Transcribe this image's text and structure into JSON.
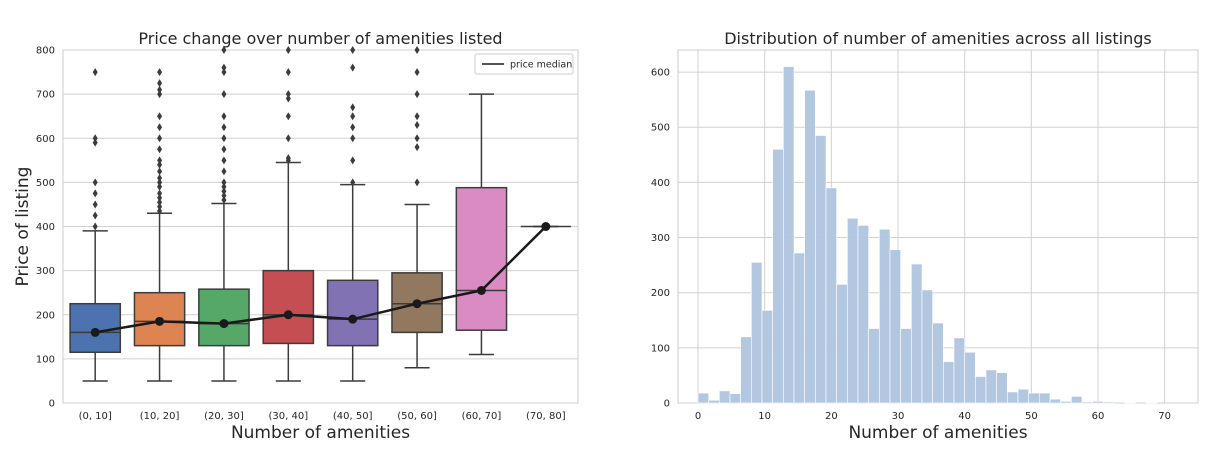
{
  "chart_data": [
    {
      "type": "box",
      "title": "Price change over number of amenities listed",
      "xlabel": "Number of amenities",
      "ylabel": "Price of listing",
      "ylim": [
        0,
        800
      ],
      "yticks": [
        0,
        100,
        200,
        300,
        400,
        500,
        600,
        700,
        800
      ],
      "categories": [
        "(0, 10]",
        "(10, 20]",
        "(20, 30]",
        "(30, 40]",
        "(40, 50]",
        "(50, 60]",
        "(60, 70]",
        "(70, 80]"
      ],
      "grid": true,
      "legend": {
        "entries": [
          "price median"
        ],
        "placement": "top-right"
      },
      "boxes": [
        {
          "q1": 115,
          "median": 160,
          "q3": 225,
          "whisker_low": 50,
          "whisker_high": 390,
          "color": "#4c72b0",
          "outliers": [
            400,
            425,
            450,
            475,
            500,
            590,
            600,
            750
          ]
        },
        {
          "q1": 130,
          "median": 185,
          "q3": 250,
          "whisker_low": 50,
          "whisker_high": 430,
          "color": "#dd8452",
          "outliers": [
            435,
            445,
            455,
            465,
            475,
            490,
            500,
            510,
            525,
            540,
            550,
            575,
            600,
            625,
            650,
            700,
            710,
            725,
            750
          ]
        },
        {
          "q1": 130,
          "median": 180,
          "q3": 258,
          "whisker_low": 50,
          "whisker_high": 452,
          "color": "#55a868",
          "outliers": [
            460,
            470,
            480,
            490,
            500,
            525,
            550,
            575,
            600,
            625,
            650,
            700,
            750,
            760,
            800
          ]
        },
        {
          "q1": 135,
          "median": 200,
          "q3": 300,
          "whisker_low": 50,
          "whisker_high": 545,
          "color": "#c44e52",
          "outliers": [
            550,
            555,
            600,
            650,
            690,
            700,
            750,
            800
          ]
        },
        {
          "q1": 130,
          "median": 190,
          "q3": 278,
          "whisker_low": 50,
          "whisker_high": 495,
          "color": "#8172b3",
          "outliers": [
            500,
            550,
            600,
            625,
            650,
            670,
            760,
            800
          ]
        },
        {
          "q1": 160,
          "median": 225,
          "q3": 295,
          "whisker_low": 80,
          "whisker_high": 450,
          "color": "#937860",
          "outliers": [
            500,
            580,
            600,
            630,
            650,
            700,
            750,
            800
          ]
        },
        {
          "q1": 165,
          "median": 255,
          "q3": 488,
          "whisker_low": 110,
          "whisker_high": 700,
          "color": "#da8bc3",
          "outliers": []
        },
        {
          "q1": 400,
          "median": 400,
          "q3": 400,
          "whisker_low": 400,
          "whisker_high": 400,
          "color": "#8c8c8c",
          "outliers": []
        }
      ],
      "series": [
        {
          "name": "price median",
          "type": "line",
          "values": [
            160,
            185,
            180,
            200,
            190,
            225,
            255,
            400
          ]
        }
      ]
    },
    {
      "type": "histogram",
      "title": "Distribution of number of amenities across all listings",
      "xlabel": "Number of amenities",
      "ylabel": "",
      "xlim": [
        -3,
        75
      ],
      "ylim": [
        0,
        640
      ],
      "xticks": [
        0,
        10,
        20,
        30,
        40,
        50,
        60,
        70
      ],
      "yticks": [
        0,
        100,
        200,
        300,
        400,
        500,
        600
      ],
      "grid": true,
      "color": "#b0c4de",
      "bin_width": 1.6,
      "bin_start": 0,
      "counts": [
        18,
        5,
        22,
        17,
        120,
        255,
        168,
        460,
        610,
        272,
        567,
        485,
        390,
        215,
        335,
        322,
        135,
        315,
        278,
        135,
        252,
        205,
        145,
        75,
        118,
        92,
        48,
        60,
        55,
        20,
        25,
        18,
        18,
        7,
        3,
        12,
        2,
        3,
        2,
        0,
        1,
        0,
        1
      ]
    }
  ]
}
